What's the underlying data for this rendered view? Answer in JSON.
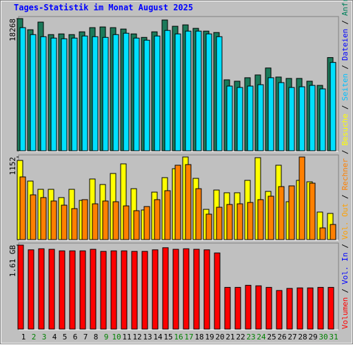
{
  "chart_data": [
    {
      "type": "bar",
      "title": "Tages-Statistik im Monat August 2025",
      "legend_separator": "/",
      "ylim": [
        0,
        18268
      ],
      "yticks": [
        18268
      ],
      "legend": [
        {
          "name": "Seiten",
          "color": "#00c0ff"
        },
        {
          "name": "Dateien",
          "color": "#0000ff"
        },
        {
          "name": "Anfragen",
          "color": "#00805c"
        }
      ],
      "series": [
        {
          "color": "#1b7a5a",
          "values": [
            18268,
            16730,
            17788,
            16057,
            16153,
            16057,
            16442,
            17019,
            17115,
            17019,
            16826,
            16153,
            15672,
            16442,
            18076,
            17211,
            17403,
            16922,
            16538,
            16346,
            9807,
            9615,
            10096,
            10480,
            11442,
            10192,
            10000,
            10000,
            9615,
            9038,
            12884
          ]
        },
        {
          "color": "#00e0ff",
          "values": [
            17019,
            16057,
            15769,
            15576,
            15480,
            15576,
            15865,
            15769,
            15672,
            16057,
            16249,
            15576,
            15288,
            15865,
            16634,
            16153,
            16538,
            16538,
            16153,
            15769,
            8942,
            8750,
            8942,
            9134,
            10096,
            9423,
            8750,
            8846,
            9038,
            8557,
            12211
          ]
        }
      ]
    },
    {
      "type": "bar",
      "ylim": [
        0,
        1152
      ],
      "yticks": [
        1152
      ],
      "legend": [
        {
          "name": "Rechner",
          "color": "#ff8000"
        },
        {
          "name": "Besuche",
          "color": "#ffff00"
        }
      ],
      "series": [
        {
          "color": "#ffff00",
          "values": [
            1104,
            816,
            701,
            701,
            586,
            701,
            547,
            845,
            768,
            922,
            1056,
            710,
            413,
            662,
            864,
            989,
            1152,
            854,
            422,
            691,
            653,
            653,
            826,
            1142,
            672,
            1037,
            528,
            826,
            806,
            384,
            365
          ]
        },
        {
          "color": "#ff8000",
          "values": [
            874,
            624,
            586,
            538,
            480,
            432,
            557,
            499,
            538,
            528,
            470,
            403,
            461,
            557,
            682,
            1037,
            1046,
            710,
            355,
            451,
            490,
            499,
            518,
            557,
            605,
            739,
            749,
            1152,
            787,
            163,
            211
          ]
        }
      ]
    },
    {
      "type": "bar",
      "ylim": [
        0,
        1.61
      ],
      "yticks": [
        {
          "value": 1.61,
          "label": "1.61 GB"
        }
      ],
      "legend": [
        {
          "name": "Volumen",
          "color": "#ff0000"
        },
        {
          "name": "Vol. In",
          "color": "#0000ff"
        },
        {
          "name": "Vol. Out",
          "color": "#ffa000"
        }
      ],
      "categories": [
        "1",
        "2",
        "3",
        "4",
        "5",
        "6",
        "7",
        "8",
        "9",
        "10",
        "11",
        "12",
        "13",
        "14",
        "15",
        "16",
        "17",
        "18",
        "19",
        "20",
        "21",
        "22",
        "23",
        "24",
        "25",
        "26",
        "27",
        "28",
        "29",
        "30",
        "31"
      ],
      "category_colors": [
        "#000000",
        "#008000",
        "#008000",
        "#000000",
        "#000000",
        "#000000",
        "#000000",
        "#000000",
        "#008000",
        "#008000",
        "#000000",
        "#000000",
        "#000000",
        "#000000",
        "#000000",
        "#008000",
        "#008000",
        "#000000",
        "#000000",
        "#000000",
        "#000000",
        "#000000",
        "#008000",
        "#008000",
        "#000000",
        "#000000",
        "#000000",
        "#000000",
        "#000000",
        "#008000",
        "#008000"
      ],
      "series": [
        {
          "color": "#ff0000",
          "values": [
            1.61,
            1.52,
            1.54,
            1.53,
            1.5,
            1.5,
            1.5,
            1.53,
            1.49,
            1.5,
            1.5,
            1.49,
            1.49,
            1.52,
            1.56,
            1.53,
            1.54,
            1.53,
            1.52,
            1.46,
            0.8,
            0.8,
            0.84,
            0.83,
            0.8,
            0.74,
            0.78,
            0.79,
            0.79,
            0.8,
            0.8
          ]
        }
      ]
    }
  ]
}
